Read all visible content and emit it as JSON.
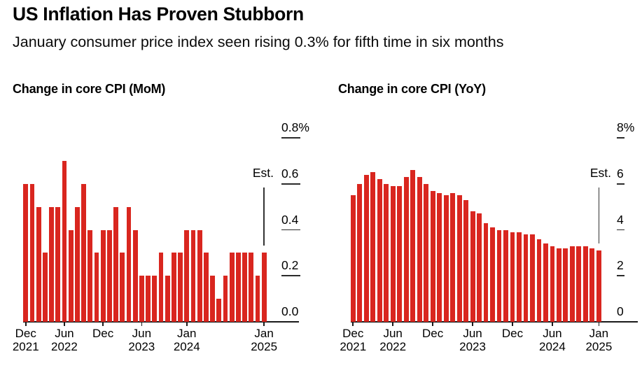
{
  "header": {
    "title": "US Inflation Has Proven Stubborn",
    "subtitle": "January consumer price index seen rising 0.3% for fifth time in six months"
  },
  "est_label": "Est.",
  "colors": {
    "bar_red": "#d9261f",
    "axis": "#1a1a1a",
    "text": "#000000",
    "background": "#ffffff"
  },
  "chart_data": [
    {
      "id": "mom",
      "type": "bar",
      "title": "Change in core CPI (MoM)",
      "xlabel": "",
      "ylabel": "",
      "ylim": [
        0,
        0.8
      ],
      "grid": false,
      "yticks_position": "right",
      "categories": [
        "Dec 2021",
        "Jan 2022",
        "Feb 2022",
        "Mar 2022",
        "Apr 2022",
        "May 2022",
        "Jun 2022",
        "Jul 2022",
        "Aug 2022",
        "Sep 2022",
        "Oct 2022",
        "Nov 2022",
        "Dec 2022",
        "Jan 2023",
        "Feb 2023",
        "Mar 2023",
        "Apr 2023",
        "May 2023",
        "Jun 2023",
        "Jul 2023",
        "Aug 2023",
        "Sep 2023",
        "Oct 2023",
        "Nov 2023",
        "Dec 2023",
        "Jan 2024",
        "Feb 2024",
        "Mar 2024",
        "Apr 2024",
        "May 2024",
        "Jun 2024",
        "Jul 2024",
        "Aug 2024",
        "Sep 2024",
        "Oct 2024",
        "Nov 2024",
        "Dec 2024",
        "Jan 2025"
      ],
      "values": [
        0.6,
        0.6,
        0.5,
        0.3,
        0.5,
        0.5,
        0.7,
        0.4,
        0.5,
        0.6,
        0.4,
        0.3,
        0.4,
        0.4,
        0.5,
        0.3,
        0.5,
        0.4,
        0.2,
        0.2,
        0.2,
        0.3,
        0.2,
        0.3,
        0.3,
        0.4,
        0.4,
        0.4,
        0.3,
        0.2,
        0.1,
        0.2,
        0.3,
        0.3,
        0.3,
        0.3,
        0.2,
        0.3
      ],
      "last_bar_is_estimate": true,
      "ytick_values": [
        0.8,
        0.6,
        0.4,
        0.2,
        0.0
      ],
      "ytick_labels": [
        "0.8%",
        "0.6",
        "0.4",
        "0.2",
        "0.0"
      ],
      "xticks": [
        {
          "index": 0,
          "line1": "Dec",
          "line2": "2021"
        },
        {
          "index": 6,
          "line1": "Jun",
          "line2": "2022"
        },
        {
          "index": 12,
          "line1": "Dec",
          "line2": ""
        },
        {
          "index": 18,
          "line1": "Jun",
          "line2": "2023"
        },
        {
          "index": 25,
          "line1": "Jan",
          "line2": "2024"
        },
        {
          "index": 37,
          "line1": "Jan",
          "line2": "2025"
        }
      ]
    },
    {
      "id": "yoy",
      "type": "bar",
      "title": "Change in core CPI (YoY)",
      "xlabel": "",
      "ylabel": "",
      "ylim": [
        0,
        8
      ],
      "grid": false,
      "yticks_position": "right",
      "categories": [
        "Dec 2021",
        "Jan 2022",
        "Feb 2022",
        "Mar 2022",
        "Apr 2022",
        "May 2022",
        "Jun 2022",
        "Jul 2022",
        "Aug 2022",
        "Sep 2022",
        "Oct 2022",
        "Nov 2022",
        "Dec 2022",
        "Jan 2023",
        "Feb 2023",
        "Mar 2023",
        "Apr 2023",
        "May 2023",
        "Jun 2023",
        "Jul 2023",
        "Aug 2023",
        "Sep 2023",
        "Oct 2023",
        "Nov 2023",
        "Dec 2023",
        "Jan 2024",
        "Feb 2024",
        "Mar 2024",
        "Apr 2024",
        "May 2024",
        "Jun 2024",
        "Jul 2024",
        "Aug 2024",
        "Sep 2024",
        "Oct 2024",
        "Nov 2024",
        "Dec 2024",
        "Jan 2025"
      ],
      "values": [
        5.5,
        6.0,
        6.4,
        6.5,
        6.2,
        6.0,
        5.9,
        5.9,
        6.3,
        6.6,
        6.3,
        6.0,
        5.7,
        5.6,
        5.5,
        5.6,
        5.5,
        5.3,
        4.8,
        4.7,
        4.3,
        4.1,
        4.0,
        4.0,
        3.9,
        3.9,
        3.8,
        3.8,
        3.6,
        3.4,
        3.3,
        3.2,
        3.2,
        3.3,
        3.3,
        3.3,
        3.2,
        3.1
      ],
      "last_bar_is_estimate": true,
      "ytick_values": [
        8,
        6,
        4,
        2,
        0
      ],
      "ytick_labels": [
        "8%",
        "6",
        "4",
        "2",
        "0"
      ],
      "xticks": [
        {
          "index": 0,
          "line1": "Dec",
          "line2": "2021"
        },
        {
          "index": 6,
          "line1": "Jun",
          "line2": "2022"
        },
        {
          "index": 12,
          "line1": "Dec",
          "line2": ""
        },
        {
          "index": 18,
          "line1": "Jun",
          "line2": "2023"
        },
        {
          "index": 24,
          "line1": "Dec",
          "line2": ""
        },
        {
          "index": 30,
          "line1": "Jun",
          "line2": "2024"
        },
        {
          "index": 37,
          "line1": "Jan",
          "line2": "2025"
        }
      ]
    }
  ]
}
